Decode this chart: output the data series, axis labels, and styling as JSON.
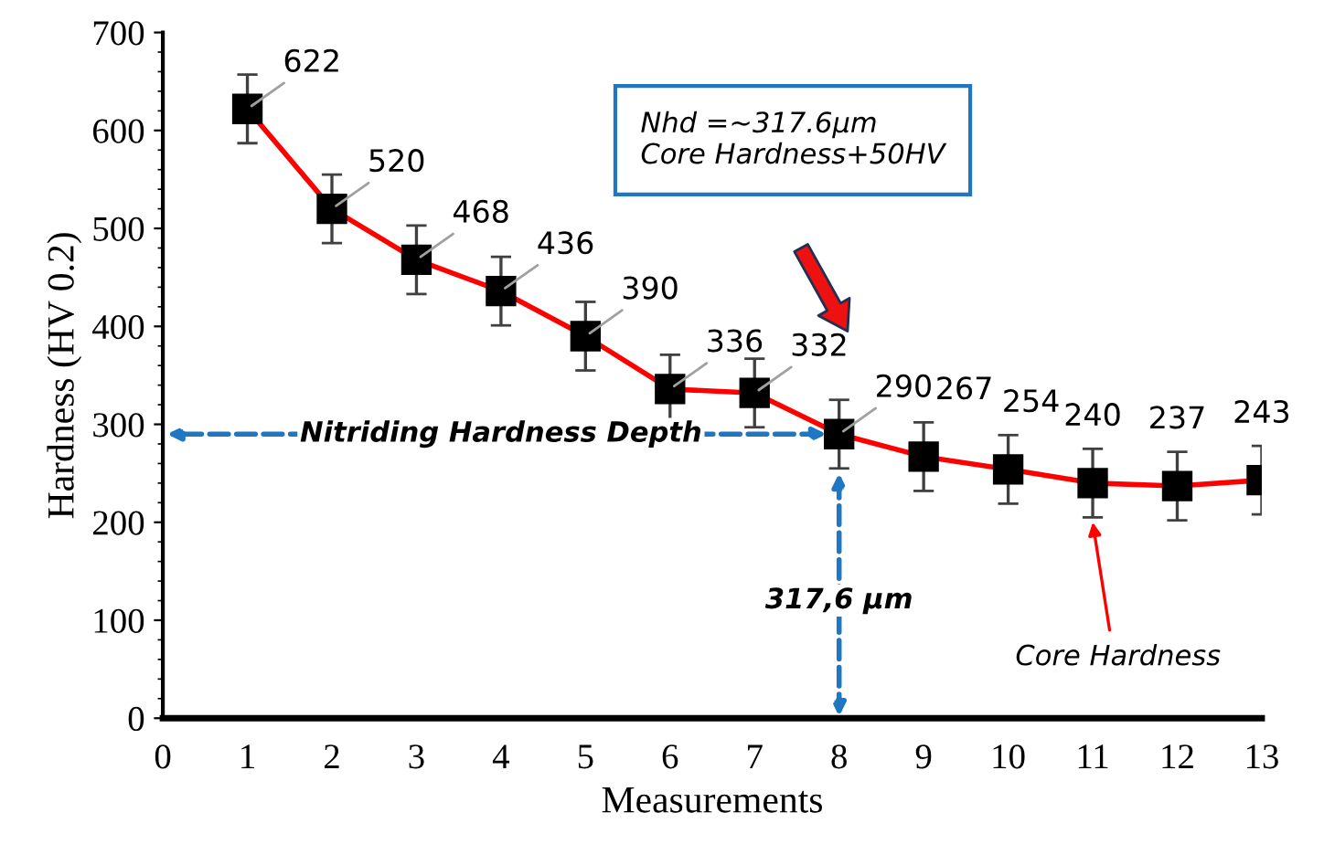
{
  "chart_data": {
    "type": "line",
    "xlabel": "Measurements",
    "ylabel": "Hardness (HV 0.2)",
    "x": [
      1,
      2,
      3,
      4,
      5,
      6,
      7,
      8,
      9,
      10,
      11,
      12,
      13
    ],
    "series": [
      {
        "color": "#ff0000",
        "values": [
          622,
          520,
          468,
          436,
          390,
          336,
          332,
          290,
          267,
          254,
          240,
          237,
          243
        ],
        "errors": [
          35,
          35,
          35,
          35,
          35,
          35,
          35,
          35,
          35,
          35,
          35,
          35,
          35
        ]
      }
    ],
    "xlim": [
      0,
      13
    ],
    "xticks": [
      0,
      1,
      2,
      3,
      4,
      5,
      6,
      7,
      8,
      9,
      10,
      11,
      12,
      13
    ],
    "ylim": [
      0,
      700
    ],
    "yticks": [
      0,
      100,
      200,
      300,
      400,
      500,
      600,
      700
    ],
    "data_labels": true,
    "marker": "square",
    "line_style": "solid",
    "grid": false,
    "legend": false,
    "annotations": [
      "Nhd =~317.6µm\nCore Hardness+50HV",
      "Nitriding Hardness Depth",
      "317,6 µm",
      "Core Hardness"
    ]
  }
}
